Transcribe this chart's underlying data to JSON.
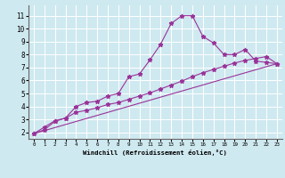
{
  "xlabel": "Windchill (Refroidissement éolien,°C)",
  "xlim": [
    -0.5,
    23.5
  ],
  "ylim": [
    1.5,
    11.8
  ],
  "xticks": [
    0,
    1,
    2,
    3,
    4,
    5,
    6,
    7,
    8,
    9,
    10,
    11,
    12,
    13,
    14,
    15,
    16,
    17,
    18,
    19,
    20,
    21,
    22,
    23
  ],
  "yticks": [
    2,
    3,
    4,
    5,
    6,
    7,
    8,
    9,
    10,
    11
  ],
  "background_color": "#cfe9f0",
  "line_color": "#993399",
  "grid_color": "#ffffff",
  "line1_x": [
    0,
    1,
    2,
    3,
    4,
    5,
    6,
    7,
    8,
    9,
    10,
    11,
    12,
    13,
    14,
    15,
    16,
    17,
    18,
    19,
    20,
    21,
    22,
    23
  ],
  "line1_y": [
    1.9,
    2.4,
    2.9,
    3.1,
    4.0,
    4.3,
    4.4,
    4.8,
    5.0,
    6.3,
    6.5,
    7.6,
    8.8,
    10.4,
    11.0,
    11.0,
    9.4,
    8.9,
    8.0,
    8.0,
    8.4,
    7.5,
    7.4,
    7.3
  ],
  "line2_x": [
    0,
    1,
    2,
    3,
    4,
    5,
    6,
    7,
    8,
    9,
    10,
    11,
    12,
    13,
    14,
    15,
    16,
    17,
    18,
    19,
    20,
    21,
    22,
    23
  ],
  "line2_y": [
    1.9,
    2.2,
    2.85,
    3.1,
    3.55,
    3.7,
    3.9,
    4.15,
    4.3,
    4.55,
    4.8,
    5.05,
    5.35,
    5.65,
    5.95,
    6.3,
    6.6,
    6.85,
    7.1,
    7.35,
    7.55,
    7.7,
    7.85,
    7.3
  ],
  "line3_x": [
    0,
    23
  ],
  "line3_y": [
    1.9,
    7.3
  ]
}
